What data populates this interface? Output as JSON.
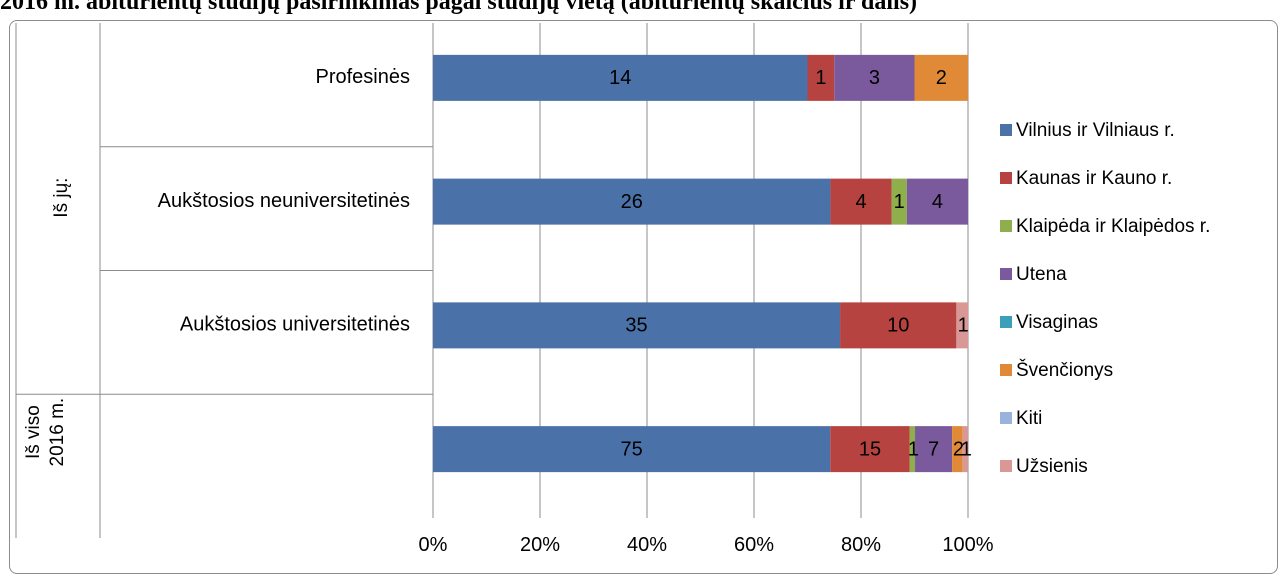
{
  "page": {
    "title": "2016 m. abiturientų studijų pasirinkimas pagal studijų vietą (abiturientų skaičius ir dalis)"
  },
  "chart_data": {
    "type": "bar",
    "orientation": "horizontal",
    "stacked": "percent",
    "categories": [
      "Profesinės",
      "Aukštosios neuniversitetinės",
      "Aukštosios universitetinės",
      "Iš viso 2016 m."
    ],
    "category_groups": [
      {
        "label": "Iš jų:",
        "categories": [
          "Profesinės",
          "Aukštosios neuniversitetinės",
          "Aukštosios universitetinės"
        ]
      },
      {
        "label": "Iš viso 2016 m.",
        "categories": [
          "Iš viso 2016 m."
        ]
      }
    ],
    "series": [
      {
        "name": "Vilnius ir Vilniaus r.",
        "color": "#4a72a8",
        "values": [
          14,
          26,
          35,
          75
        ]
      },
      {
        "name": "Kaunas ir Kauno r.",
        "color": "#b6433f",
        "values": [
          1,
          4,
          10,
          15
        ]
      },
      {
        "name": "Klaipėda ir Klaipėdos r.",
        "color": "#8fae4c",
        "values": [
          0,
          1,
          0,
          1
        ]
      },
      {
        "name": "Utena",
        "color": "#7a5a9c",
        "values": [
          3,
          4,
          0,
          7
        ]
      },
      {
        "name": "Visaginas",
        "color": "#3c9fba",
        "values": [
          0,
          0,
          0,
          0
        ]
      },
      {
        "name": "Švenčionys",
        "color": "#e08a38",
        "values": [
          2,
          0,
          0,
          2
        ]
      },
      {
        "name": "Kiti",
        "color": "#99b3dd",
        "values": [
          0,
          0,
          0,
          0
        ]
      },
      {
        "name": "Užsienis",
        "color": "#d99795",
        "values": [
          0,
          0,
          1,
          1
        ]
      }
    ],
    "x_ticks": [
      "0%",
      "20%",
      "40%",
      "60%",
      "80%",
      "100%"
    ],
    "xlim": [
      0,
      100
    ],
    "grid": true,
    "legend_position": "right"
  }
}
